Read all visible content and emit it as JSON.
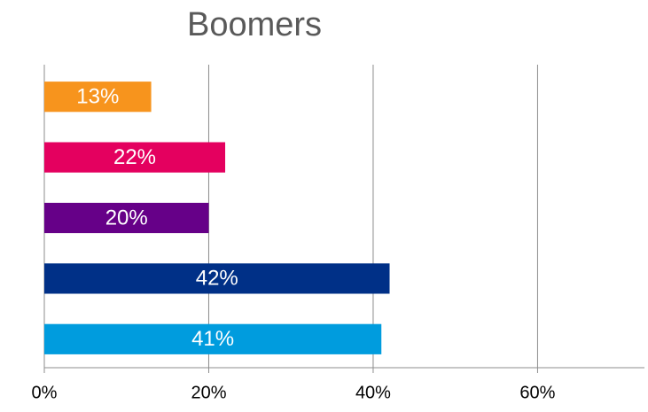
{
  "chart_data": {
    "type": "barh",
    "title": "Boomers",
    "categories": [
      null,
      null,
      null,
      null,
      null
    ],
    "values": [
      13,
      22,
      20,
      42,
      41
    ],
    "value_labels": [
      "13%",
      "22%",
      "20%",
      "42%",
      "41%"
    ],
    "colors": [
      "#f7941d",
      "#e4005f",
      "#660088",
      "#003087",
      "#009cde"
    ],
    "xlim": [
      0,
      73
    ],
    "xticks": [
      {
        "value": 0,
        "label": "0%"
      },
      {
        "value": 20,
        "label": "20%"
      },
      {
        "value": 40,
        "label": "40%"
      },
      {
        "value": 60,
        "label": "60%"
      }
    ],
    "grid": true
  }
}
